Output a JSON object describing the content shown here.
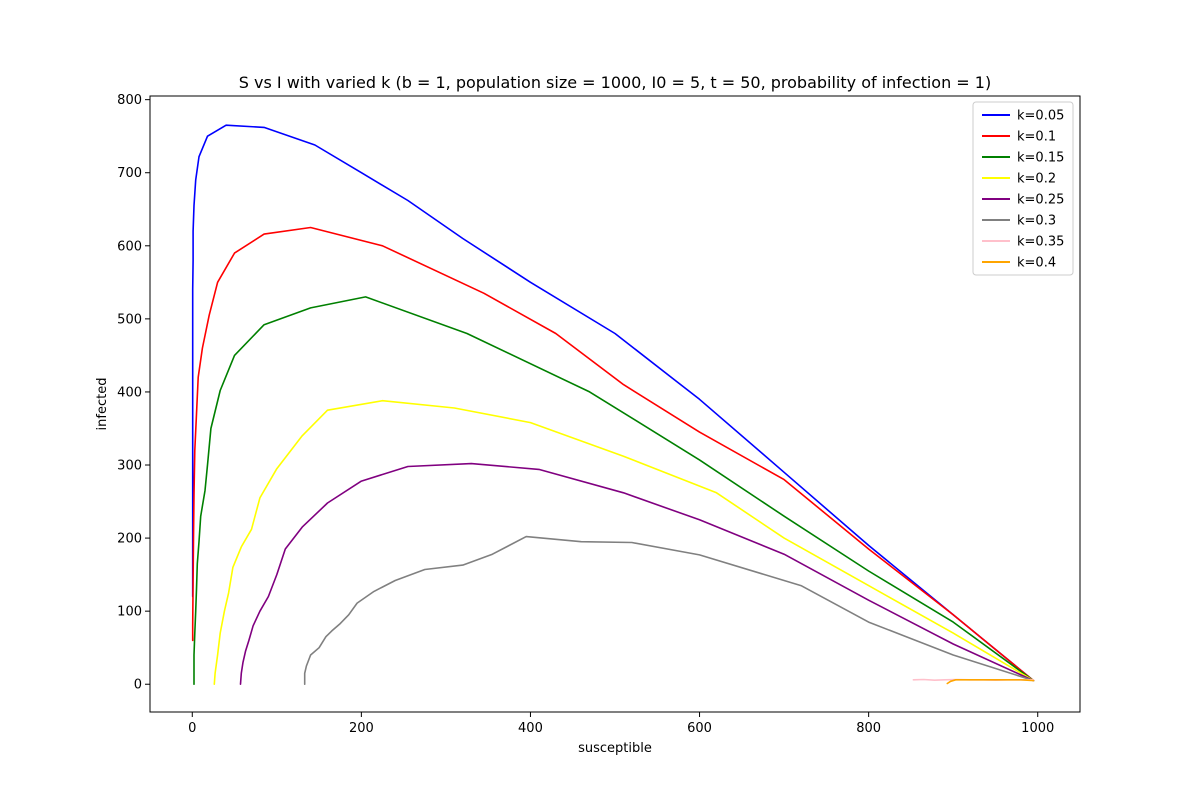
{
  "chart_data": {
    "type": "line",
    "title": "S vs I with varied k (b = 1, population size = 1000, I0 = 5, t = 50, probability of infection = 1)",
    "xlabel": "susceptible",
    "ylabel": "infected",
    "xlim": [
      -50,
      1050
    ],
    "ylim": [
      -38,
      805
    ],
    "xticks": [
      0,
      200,
      400,
      600,
      800,
      1000
    ],
    "yticks": [
      0,
      100,
      200,
      300,
      400,
      500,
      600,
      700,
      800
    ],
    "grid": false,
    "legend_position": "top-right",
    "series": [
      {
        "name": "k=0.05",
        "color": "#0000ff",
        "points": [
          [
            995,
            5
          ],
          [
            900,
            95
          ],
          [
            800,
            190
          ],
          [
            700,
            290
          ],
          [
            600,
            390
          ],
          [
            500,
            480
          ],
          [
            400,
            550
          ],
          [
            320,
            610
          ],
          [
            255,
            662
          ],
          [
            200,
            700
          ],
          [
            145,
            738
          ],
          [
            85,
            762
          ],
          [
            40,
            765
          ],
          [
            18,
            750
          ],
          [
            8,
            722
          ],
          [
            4,
            690
          ],
          [
            2,
            655
          ],
          [
            1,
            620
          ],
          [
            1,
            580
          ],
          [
            0.5,
            540
          ],
          [
            0.5,
            480
          ],
          [
            0.5,
            400
          ],
          [
            0.5,
            330
          ],
          [
            0.5,
            280
          ],
          [
            0.5,
            200
          ],
          [
            0.5,
            120
          ]
        ]
      },
      {
        "name": "k=0.1",
        "color": "#ff0000",
        "points": [
          [
            995,
            5
          ],
          [
            900,
            95
          ],
          [
            800,
            185
          ],
          [
            700,
            280
          ],
          [
            600,
            345
          ],
          [
            510,
            410
          ],
          [
            430,
            480
          ],
          [
            345,
            535
          ],
          [
            225,
            600
          ],
          [
            140,
            625
          ],
          [
            85,
            616
          ],
          [
            50,
            590
          ],
          [
            30,
            550
          ],
          [
            20,
            505
          ],
          [
            12,
            460
          ],
          [
            7,
            420
          ],
          [
            5,
            370
          ],
          [
            3,
            320
          ],
          [
            2,
            260
          ],
          [
            1.5,
            200
          ],
          [
            1,
            140
          ],
          [
            0.5,
            80
          ],
          [
            0.5,
            60
          ]
        ]
      },
      {
        "name": "k=0.15",
        "color": "#008000",
        "points": [
          [
            995,
            5
          ],
          [
            900,
            85
          ],
          [
            800,
            155
          ],
          [
            700,
            230
          ],
          [
            600,
            307
          ],
          [
            470,
            400
          ],
          [
            325,
            480
          ],
          [
            205,
            530
          ],
          [
            140,
            515
          ],
          [
            85,
            492
          ],
          [
            50,
            450
          ],
          [
            33,
            402
          ],
          [
            22,
            350
          ],
          [
            18,
            300
          ],
          [
            15,
            265
          ],
          [
            10,
            230
          ],
          [
            8,
            195
          ],
          [
            6,
            165
          ],
          [
            5,
            130
          ],
          [
            4,
            100
          ],
          [
            3,
            70
          ],
          [
            2,
            40
          ],
          [
            2,
            0
          ]
        ]
      },
      {
        "name": "k=0.2",
        "color": "#ffff00",
        "points": [
          [
            995,
            5
          ],
          [
            900,
            70
          ],
          [
            800,
            135
          ],
          [
            700,
            200
          ],
          [
            620,
            262
          ],
          [
            510,
            312
          ],
          [
            400,
            358
          ],
          [
            310,
            378
          ],
          [
            225,
            388
          ],
          [
            160,
            375
          ],
          [
            130,
            340
          ],
          [
            100,
            295
          ],
          [
            80,
            255
          ],
          [
            70,
            212
          ],
          [
            58,
            188
          ],
          [
            48,
            160
          ],
          [
            43,
            125
          ],
          [
            38,
            100
          ],
          [
            33,
            70
          ],
          [
            30,
            40
          ],
          [
            27,
            15
          ],
          [
            26,
            0
          ]
        ]
      },
      {
        "name": "k=0.25",
        "color": "#800080",
        "points": [
          [
            995,
            5
          ],
          [
            900,
            55
          ],
          [
            800,
            115
          ],
          [
            700,
            178
          ],
          [
            600,
            225
          ],
          [
            510,
            262
          ],
          [
            410,
            294
          ],
          [
            330,
            302
          ],
          [
            255,
            298
          ],
          [
            200,
            278
          ],
          [
            160,
            248
          ],
          [
            130,
            215
          ],
          [
            110,
            185
          ],
          [
            100,
            150
          ],
          [
            90,
            120
          ],
          [
            80,
            100
          ],
          [
            72,
            80
          ],
          [
            67,
            60
          ],
          [
            63,
            45
          ],
          [
            60,
            30
          ],
          [
            58,
            15
          ],
          [
            57,
            0
          ]
        ]
      },
      {
        "name": "k=0.3",
        "color": "#808080",
        "points": [
          [
            995,
            5
          ],
          [
            900,
            40
          ],
          [
            800,
            85
          ],
          [
            720,
            135
          ],
          [
            600,
            177
          ],
          [
            520,
            194
          ],
          [
            460,
            195
          ],
          [
            395,
            202
          ],
          [
            355,
            178
          ],
          [
            320,
            163
          ],
          [
            275,
            157
          ],
          [
            240,
            142
          ],
          [
            215,
            127
          ],
          [
            195,
            111
          ],
          [
            185,
            95
          ],
          [
            175,
            83
          ],
          [
            165,
            73
          ],
          [
            158,
            65
          ],
          [
            150,
            50
          ],
          [
            140,
            40
          ],
          [
            135,
            25
          ],
          [
            133,
            15
          ],
          [
            133,
            0
          ]
        ]
      },
      {
        "name": "k=0.35",
        "color": "#ffc0cb",
        "points": [
          [
            853,
            6
          ],
          [
            865,
            6.5
          ],
          [
            878,
            5.5
          ],
          [
            890,
            6
          ],
          [
            905,
            6.5
          ],
          [
            920,
            6
          ],
          [
            935,
            6
          ],
          [
            950,
            5.5
          ],
          [
            965,
            6
          ],
          [
            980,
            6
          ],
          [
            995,
            6
          ]
        ]
      },
      {
        "name": "k=0.4",
        "color": "#ffa500",
        "points": [
          [
            893,
            1
          ],
          [
            897,
            4
          ],
          [
            903,
            6
          ],
          [
            920,
            6
          ],
          [
            940,
            6
          ],
          [
            960,
            6
          ],
          [
            980,
            6
          ],
          [
            995,
            5
          ]
        ]
      }
    ]
  }
}
